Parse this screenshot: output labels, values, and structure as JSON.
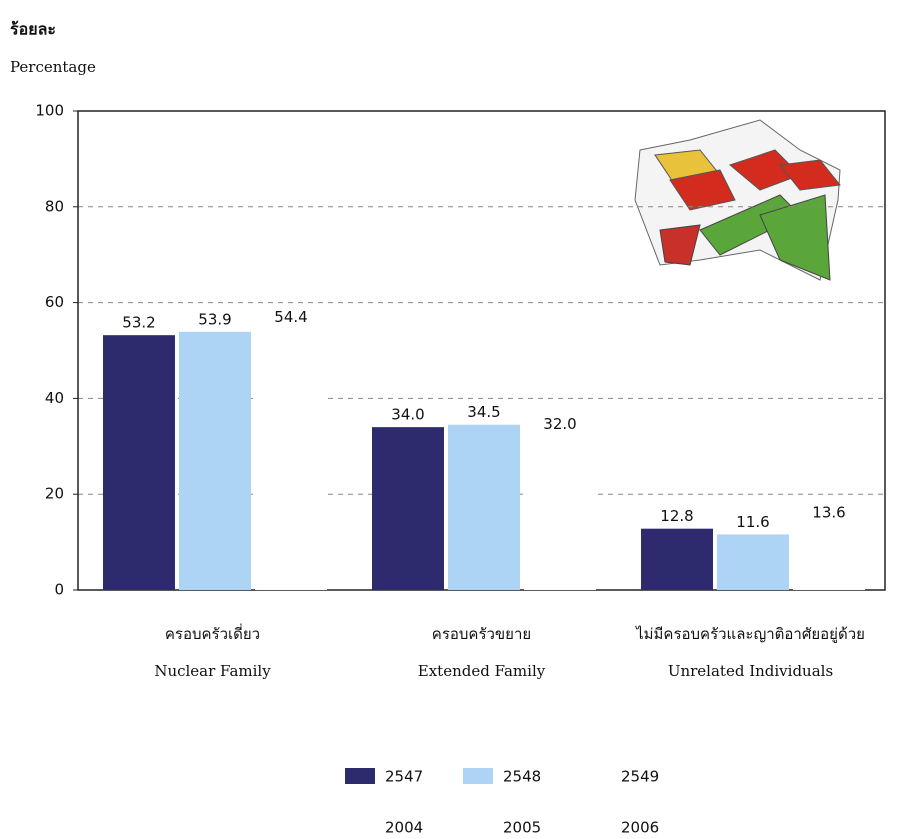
{
  "chart_data": {
    "type": "bar",
    "ylabel": "ร้อยละ",
    "ylabel_en": "Percentage",
    "categories": [
      "ครอบครัวเดี่ยว",
      "ครอบครัวขยาย",
      "ไม่มีครอบครัวและญาติอาศัยอยู่ด้วย"
    ],
    "categories_en": [
      "Nuclear Family",
      "Extended Family",
      "Unrelated Individuals"
    ],
    "series": [
      {
        "name": "2547",
        "name_alt": "2004",
        "color": "#2e2a6e",
        "values": [
          53.2,
          34.0,
          12.8
        ],
        "value_labels": [
          "53.2",
          "34.0",
          "12.8"
        ]
      },
      {
        "name": "2548",
        "name_alt": "2005",
        "color": "#aed4f5",
        "values": [
          53.9,
          34.5,
          11.6
        ],
        "value_labels": [
          "53.9",
          "34.5",
          "11.6"
        ]
      },
      {
        "name": "2549",
        "name_alt": "2006",
        "color": "#ffffff",
        "values": [
          54.4,
          32.0,
          13.6
        ],
        "value_labels": [
          "54.4",
          "32.0",
          "13.6"
        ]
      }
    ],
    "ylim": [
      0,
      100
    ],
    "yticks": [
      0,
      20,
      40,
      60,
      80,
      100
    ],
    "grid": true
  }
}
